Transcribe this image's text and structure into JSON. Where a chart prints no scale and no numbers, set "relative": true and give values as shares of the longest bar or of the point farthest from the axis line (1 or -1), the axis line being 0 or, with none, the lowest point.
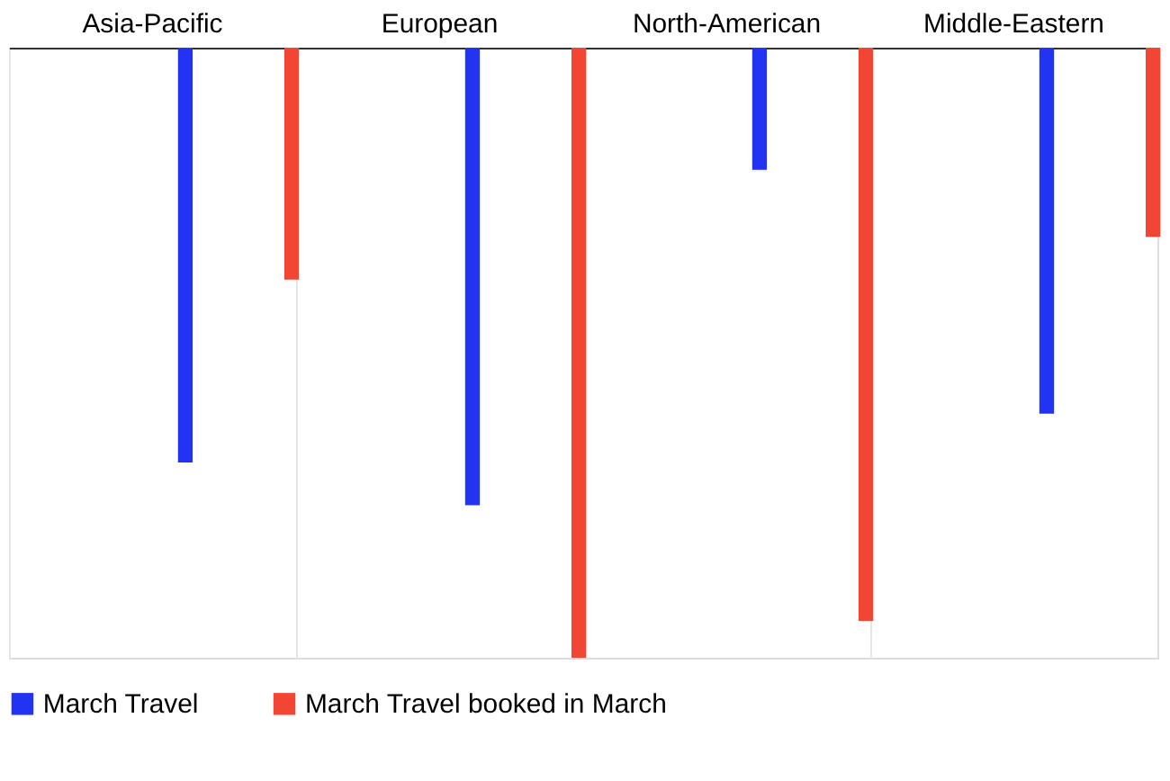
{
  "chart_data": {
    "type": "bar",
    "relative": true,
    "categories": [
      "Asia-Pacific",
      "European",
      "North-American",
      "Middle-Eastern"
    ],
    "series": [
      {
        "name": "March Travel",
        "color": "#2333f2",
        "values": [
          -0.68,
          -0.75,
          -0.2,
          -0.6
        ]
      },
      {
        "name": "March Travel booked in March",
        "color": "#f24533",
        "values": [
          -0.38,
          -1,
          -0.94,
          -0.31
        ]
      }
    ],
    "grid": "x",
    "legend": "bottom"
  }
}
